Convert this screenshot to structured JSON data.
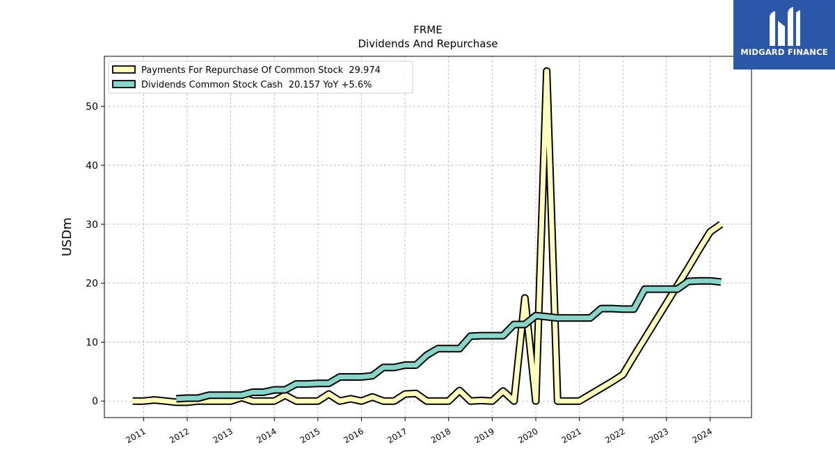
{
  "brand": {
    "name": "MIDGARD FINANCE",
    "bg_color": "#2b57a8"
  },
  "chart_data": {
    "type": "line",
    "title": "FRME",
    "subtitle": "Dividends And Repurchase",
    "ylabel": "USDm",
    "xlabel": "",
    "ylim": [
      -2.8,
      58.5
    ],
    "xlim": [
      2010.1,
      2024.95
    ],
    "yticks": [
      0,
      10,
      20,
      30,
      40,
      50
    ],
    "xticks": [
      2011,
      2012,
      2013,
      2014,
      2015,
      2016,
      2017,
      2018,
      2019,
      2020,
      2021,
      2022,
      2023,
      2024
    ],
    "grid": true,
    "legend_position": "top-left",
    "series": [
      {
        "name": "Payments For Repurchase Of Common Stock",
        "legend_label": "Payments For Repurchase Of Common Stock  29.974",
        "color": "#ffffbb",
        "x": [
          2010.75,
          2011.0,
          2011.25,
          2011.5,
          2011.75,
          2012.0,
          2012.25,
          2012.5,
          2012.75,
          2013.0,
          2013.25,
          2013.5,
          2013.75,
          2014.0,
          2014.25,
          2014.5,
          2014.75,
          2015.0,
          2015.25,
          2015.5,
          2015.75,
          2016.0,
          2016.25,
          2016.5,
          2016.75,
          2017.0,
          2017.25,
          2017.5,
          2017.75,
          2018.0,
          2018.25,
          2018.5,
          2018.75,
          2019.0,
          2019.25,
          2019.5,
          2019.75,
          2020.0,
          2020.25,
          2020.5,
          2020.75,
          2021.0,
          2021.25,
          2021.5,
          2021.75,
          2022.0,
          2022.25,
          2022.5,
          2022.75,
          2023.0,
          2023.25,
          2023.5,
          2023.75,
          2024.0,
          2024.25
        ],
        "values": [
          0.0,
          0.0,
          0.2,
          0.0,
          -0.2,
          -0.2,
          0.0,
          0.0,
          0.0,
          0.0,
          0.6,
          0.0,
          0.0,
          0.0,
          1.0,
          0.0,
          0.0,
          0.0,
          1.2,
          0.0,
          0.4,
          0.0,
          0.7,
          0.0,
          0.0,
          1.2,
          1.3,
          0.0,
          0.0,
          0.0,
          1.8,
          0.0,
          0.1,
          0.0,
          1.7,
          0.0,
          17.5,
          0.0,
          56.0,
          0.0,
          0.0,
          0.0,
          1.1,
          2.2,
          3.3,
          4.5,
          7.6,
          10.6,
          13.6,
          16.6,
          19.6,
          22.6,
          25.7,
          28.7,
          30.0
        ]
      },
      {
        "name": "Dividends Common Stock Cash",
        "legend_label": "Dividends Common Stock Cash  20.157 YoY +5.6%",
        "color": "#88d4c8",
        "x": [
          2011.75,
          2012.0,
          2012.25,
          2012.5,
          2012.75,
          2013.0,
          2013.25,
          2013.5,
          2013.75,
          2014.0,
          2014.25,
          2014.5,
          2014.75,
          2015.0,
          2015.25,
          2015.5,
          2015.75,
          2016.0,
          2016.25,
          2016.5,
          2016.75,
          2017.0,
          2017.25,
          2017.5,
          2017.75,
          2018.0,
          2018.25,
          2018.5,
          2018.75,
          2019.0,
          2019.25,
          2019.5,
          2019.75,
          2020.0,
          2020.25,
          2020.5,
          2020.75,
          2021.0,
          2021.25,
          2021.5,
          2021.75,
          2022.0,
          2022.25,
          2022.5,
          2022.75,
          2023.0,
          2023.25,
          2023.5,
          2023.75,
          2024.0,
          2024.25
        ],
        "values": [
          0.4,
          0.5,
          0.5,
          1.0,
          1.0,
          1.0,
          1.0,
          1.5,
          1.5,
          1.9,
          1.9,
          2.9,
          2.9,
          3.0,
          3.0,
          4.1,
          4.1,
          4.1,
          4.3,
          5.7,
          5.7,
          6.1,
          6.1,
          7.8,
          8.9,
          8.9,
          8.9,
          11.0,
          11.1,
          11.1,
          11.1,
          13.0,
          13.0,
          14.5,
          14.3,
          14.1,
          14.1,
          14.1,
          14.1,
          15.7,
          15.7,
          15.6,
          15.6,
          19.0,
          19.0,
          19.0,
          19.0,
          20.3,
          20.4,
          20.4,
          20.2
        ]
      }
    ]
  }
}
